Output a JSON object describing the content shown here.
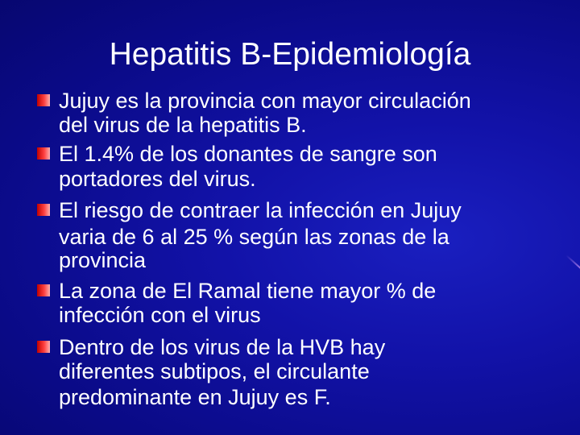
{
  "slide": {
    "title": "Hepatitis B-Epidemiología",
    "bullets": [
      {
        "lines": [
          "Jujuy es la provincia con mayor circulación",
          "del virus de la hepatitis B."
        ]
      },
      {
        "lines": [
          "El 1.4% de los donantes de sangre son",
          "portadores del virus."
        ]
      },
      {
        "lines": [
          "El riesgo de contraer la infección en Jujuy",
          "varia de 6 al 25 % según las zonas de la",
          "provincia"
        ]
      },
      {
        "lines": [
          "La zona de El Ramal tiene mayor % de",
          "infección con el virus"
        ]
      },
      {
        "lines": [
          "Dentro de los virus de la HVB hay",
          "diferentes subtipos, el circulante",
          "predominante en Jujuy es F."
        ]
      }
    ],
    "colors": {
      "background": "#1212a8",
      "bullet": "#e02020",
      "text": "#ffffff"
    }
  }
}
